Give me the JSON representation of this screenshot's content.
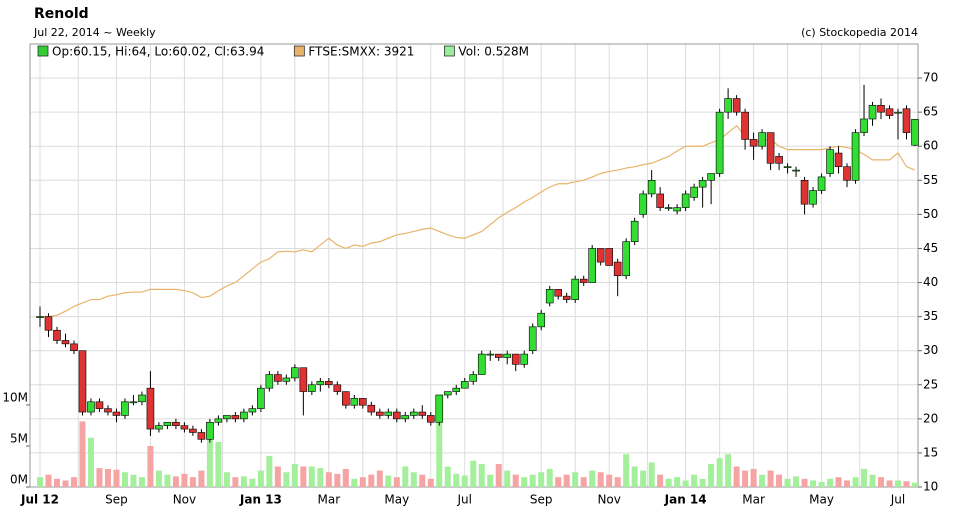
{
  "chart_data": {
    "type": "candlestick",
    "title": "Renold",
    "subtitle": "Jul 22, 2014 ~ Weekly",
    "credit": "(c) Stockopedia 2014",
    "categories": [
      "Jul 12",
      null,
      null,
      null,
      null,
      null,
      null,
      null,
      null,
      "Sep",
      null,
      null,
      null,
      null,
      null,
      null,
      null,
      "Nov",
      null,
      null,
      null,
      null,
      null,
      null,
      null,
      null,
      "Jan 13",
      null,
      null,
      null,
      null,
      null,
      null,
      null,
      "Mar",
      null,
      null,
      null,
      null,
      null,
      null,
      null,
      "May",
      null,
      null,
      null,
      null,
      null,
      null,
      null,
      "Jul",
      null,
      null,
      null,
      null,
      null,
      null,
      null,
      null,
      "Sep",
      null,
      null,
      null,
      null,
      null,
      null,
      null,
      "Nov",
      null,
      null,
      null,
      null,
      null,
      null,
      null,
      null,
      "Jan 14",
      null,
      null,
      null,
      null,
      null,
      null,
      null,
      "Mar",
      null,
      null,
      null,
      null,
      null,
      null,
      null,
      "May",
      null,
      null,
      null,
      null,
      null,
      null,
      null,
      null,
      "Jul",
      null,
      null
    ],
    "ylim": [
      10,
      75
    ],
    "yticks": [
      10,
      15,
      20,
      25,
      30,
      35,
      40,
      45,
      50,
      55,
      60,
      65,
      70
    ],
    "y2lim": [
      0,
      54
    ],
    "y2ticks": [
      {
        "value": 0,
        "label": "0M"
      },
      {
        "value": 5,
        "label": "5M"
      },
      {
        "value": 10,
        "label": "10M"
      }
    ],
    "grid": true,
    "series": [
      {
        "name": "Op:60.15, Hi:64, Lo:60.02, Cl:63.94",
        "color": "#33cc33",
        "up_color": "#33dd33",
        "down_color": "#dd3333",
        "open": [
          35,
          35,
          33,
          31.5,
          31,
          30,
          21,
          22.5,
          21.5,
          21,
          20.5,
          22.5,
          22.5,
          24.5,
          18.5,
          19,
          19.5,
          19,
          18.5,
          18,
          17,
          19.5,
          20,
          20.5,
          20,
          21,
          21.5,
          24.5,
          26.5,
          25.5,
          26,
          27.5,
          24,
          25,
          25.5,
          25,
          24,
          22,
          23,
          22,
          21,
          20.5,
          21,
          20,
          20.5,
          21,
          20.5,
          19.5,
          23.5,
          24,
          24.5,
          25.5,
          26.5,
          29.5,
          29.5,
          29,
          29.5,
          28,
          30,
          33.5,
          37,
          39,
          38,
          37.5,
          40.5,
          40,
          45,
          45,
          43,
          41,
          46,
          50,
          53,
          53,
          51,
          50.5,
          51,
          52.5,
          54,
          55,
          56,
          65,
          67,
          65,
          61,
          60,
          62,
          58.5,
          57,
          56.5,
          55,
          51.5,
          53.5,
          56,
          59,
          57,
          55,
          62,
          64,
          66,
          65.5,
          65,
          65.5,
          60.15
        ],
        "high": [
          36.5,
          35.5,
          33.5,
          32.5,
          31.5,
          30,
          23,
          23,
          22,
          21.5,
          23,
          23.5,
          24,
          27,
          19.5,
          19.5,
          20,
          19.5,
          19,
          18.5,
          20,
          20.5,
          20.5,
          21,
          21.5,
          22,
          25,
          27,
          27,
          26.5,
          28,
          27.5,
          25.5,
          26,
          26,
          25.5,
          24,
          23.5,
          23,
          22.5,
          21.5,
          21.5,
          21.5,
          21,
          21.5,
          22,
          21,
          23.5,
          24,
          25,
          26,
          27,
          30,
          30,
          29.5,
          30,
          29.5,
          30,
          34,
          36,
          39.5,
          39,
          38.5,
          41,
          41,
          45.5,
          45,
          45,
          43.5,
          46.5,
          49.5,
          53.5,
          56.5,
          54,
          51.5,
          51.5,
          53.5,
          54.5,
          55.5,
          56,
          65.5,
          68.5,
          67.5,
          65.5,
          62,
          62.5,
          62,
          59,
          57.5,
          57,
          55.5,
          54,
          56,
          60,
          60,
          57.5,
          62.5,
          69,
          66.5,
          67,
          66,
          65.5,
          66,
          64
        ],
        "low": [
          33.5,
          32,
          31,
          30.5,
          29.5,
          20.5,
          20.5,
          21,
          20.5,
          19.5,
          20,
          22,
          22,
          17.5,
          18,
          18.5,
          18.5,
          18,
          17.5,
          16.5,
          16.5,
          19,
          19.5,
          19.5,
          19.5,
          20.5,
          21,
          24,
          25,
          25,
          25.5,
          20.5,
          23.5,
          24,
          24.5,
          23.5,
          21.5,
          21.5,
          21.5,
          20.5,
          20,
          20,
          19.5,
          19.5,
          20,
          20,
          19,
          19,
          23,
          23.5,
          24.5,
          25,
          26.5,
          28.5,
          28.5,
          28,
          27,
          27.5,
          29.5,
          33,
          36.5,
          37.5,
          37,
          37,
          39.5,
          40,
          42.5,
          42.5,
          38,
          40.5,
          45.5,
          49.5,
          52.5,
          50.5,
          50.5,
          50,
          50.5,
          52,
          51,
          51.5,
          55.5,
          64,
          64.5,
          59.5,
          58,
          59.5,
          56.5,
          56.5,
          56,
          55.5,
          50,
          51,
          53,
          55.5,
          56,
          54,
          54.5,
          61.5,
          63,
          64,
          64,
          61,
          61,
          60.02
        ],
        "close": [
          35,
          33,
          31.5,
          31,
          30,
          21,
          22.5,
          21.5,
          21,
          20.5,
          22.5,
          22.5,
          23.5,
          18.5,
          19,
          19.5,
          19,
          18.5,
          18,
          17,
          19.5,
          20,
          20.5,
          20,
          21,
          21.5,
          24.5,
          26.5,
          25.5,
          26,
          27.5,
          24,
          25,
          25.5,
          25,
          24,
          22,
          23,
          22,
          21,
          20.5,
          21,
          20,
          20.5,
          21,
          20.5,
          19.5,
          23.5,
          24,
          24.5,
          25.5,
          26.5,
          29.5,
          29.5,
          29,
          29.5,
          28,
          29.5,
          33.5,
          35.5,
          39,
          38,
          37.5,
          40.5,
          40,
          45,
          43,
          42.5,
          41,
          46,
          49,
          53,
          55,
          51,
          51,
          51,
          53,
          54,
          55,
          56,
          65,
          67,
          65,
          61,
          60,
          62,
          57.5,
          57.5,
          57,
          56.5,
          51.5,
          53.5,
          55.5,
          59.5,
          57,
          55,
          62,
          64,
          66,
          65,
          64.5,
          65,
          62,
          63.94
        ]
      },
      {
        "name": "FTSE:SMXX: 3921",
        "color": "#e8b46a",
        "values": [
          35,
          35,
          35.2,
          35.8,
          36.5,
          37,
          37.5,
          37.5,
          38,
          38.2,
          38.5,
          38.6,
          38.6,
          39,
          39,
          39,
          39,
          38.8,
          38.5,
          37.8,
          38,
          38.8,
          39.5,
          40,
          41,
          42,
          43,
          43.5,
          44.5,
          44.6,
          44.5,
          44.8,
          44.5,
          45.5,
          46.5,
          45.5,
          45,
          45.5,
          45.3,
          45.8,
          46,
          46.5,
          47,
          47.2,
          47.5,
          47.8,
          48,
          47.5,
          47,
          46.6,
          46.5,
          47,
          47.5,
          48.5,
          49.5,
          50.3,
          51,
          51.8,
          52.5,
          53.3,
          54,
          54.5,
          54.5,
          54.8,
          55,
          55.5,
          56,
          56.3,
          56.5,
          56.8,
          57,
          57.3,
          57.5,
          58,
          58.5,
          59.3,
          60,
          60,
          60,
          60.5,
          61,
          62,
          63,
          61.5,
          60.5,
          60.8,
          61,
          60,
          59.5,
          59.5,
          59.5,
          59.5,
          59.5,
          59.8,
          60,
          59.8,
          59.5,
          58.8,
          58,
          58,
          58,
          59,
          57,
          56.5
        ]
      },
      {
        "name": "Vol: 0.528M",
        "color": "#99ee99",
        "up_color": "#a4ef9c",
        "down_color": "#f5a3a3",
        "axis": "y2",
        "values": [
          1.2,
          1.5,
          1.0,
          0.8,
          1.2,
          8.0,
          6.0,
          2.3,
          2.2,
          2.1,
          1.8,
          1.5,
          1.2,
          5.0,
          2.0,
          1.5,
          1.3,
          1.6,
          1.2,
          2.0,
          5.8,
          5.5,
          1.8,
          1.2,
          1.3,
          1.0,
          2.0,
          3.8,
          2.5,
          1.8,
          2.8,
          2.5,
          2.5,
          2.3,
          1.8,
          1.6,
          2.2,
          1.0,
          1.2,
          1.5,
          2.0,
          1.4,
          1.2,
          2.5,
          1.8,
          1.5,
          1.0,
          10.0,
          2.5,
          1.6,
          1.4,
          3.2,
          2.8,
          1.5,
          2.8,
          2.0,
          1.5,
          1.2,
          1.5,
          1.8,
          2.2,
          1.2,
          1.5,
          1.8,
          1.2,
          2.0,
          1.8,
          1.5,
          1.2,
          4.0,
          2.5,
          2.0,
          3.0,
          1.5,
          1.0,
          1.2,
          0.8,
          1.5,
          1.0,
          2.8,
          3.5,
          4.0,
          2.5,
          2.0,
          2.2,
          1.5,
          2.0,
          1.5,
          1.0,
          1.3,
          1.0,
          0.8,
          0.6,
          1.0,
          1.2,
          0.8,
          1.2,
          2.2,
          1.5,
          1.2,
          0.8,
          0.8,
          0.7,
          0.528
        ]
      }
    ]
  }
}
